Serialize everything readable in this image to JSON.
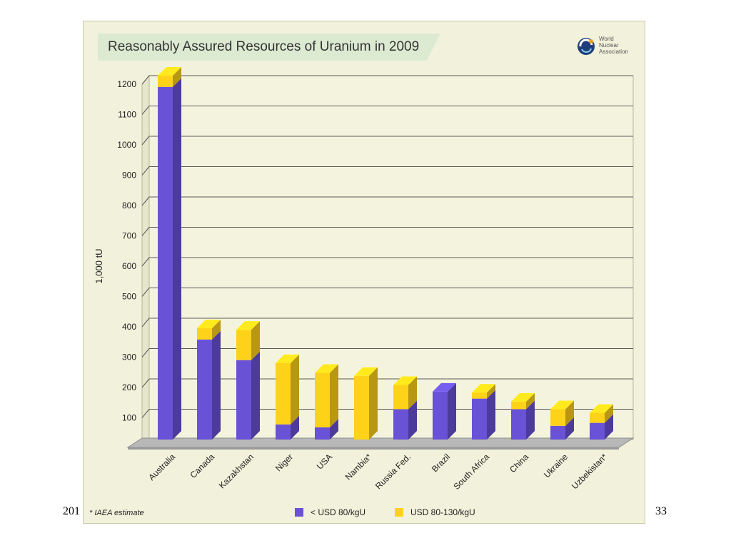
{
  "slide": {
    "left_text": "201",
    "page_number": "33"
  },
  "logo": {
    "name_lines": [
      "World",
      "Nuclear",
      "Association"
    ]
  },
  "colors": {
    "primary_series": "#6a52d6",
    "secondary_series": "#ffd21a",
    "card_background": "#f2f2dc",
    "gridline": "#5a5a5a"
  },
  "chart_data": {
    "type": "bar",
    "stacked": true,
    "three_d": true,
    "title": "Reasonably Assured Resources of Uranium in 2009",
    "xlabel": "",
    "ylabel": "1,000 tU",
    "ylim": [
      0,
      1200
    ],
    "yticks": [
      100,
      200,
      300,
      400,
      500,
      600,
      700,
      800,
      900,
      1000,
      1100,
      1200
    ],
    "grid": true,
    "legend_position": "bottom",
    "categories": [
      "Australia",
      "Canada",
      "Kazakhstan",
      "Niger",
      "USA",
      "Nambia*",
      "Russia Fed.",
      "Brazil",
      "South Africa",
      "China",
      "Ukraine",
      "Uzbekistan*"
    ],
    "series": [
      {
        "name": "< USD 80/kgU",
        "values": [
          1163,
          330,
          262,
          50,
          40,
          0,
          100,
          158,
          135,
          100,
          45,
          55
        ]
      },
      {
        "name": "USD 80-130/kgU",
        "values": [
          37,
          37,
          100,
          202,
          180,
          210,
          80,
          0,
          20,
          25,
          55,
          33
        ]
      }
    ],
    "footnote": "* IAEA estimate"
  }
}
